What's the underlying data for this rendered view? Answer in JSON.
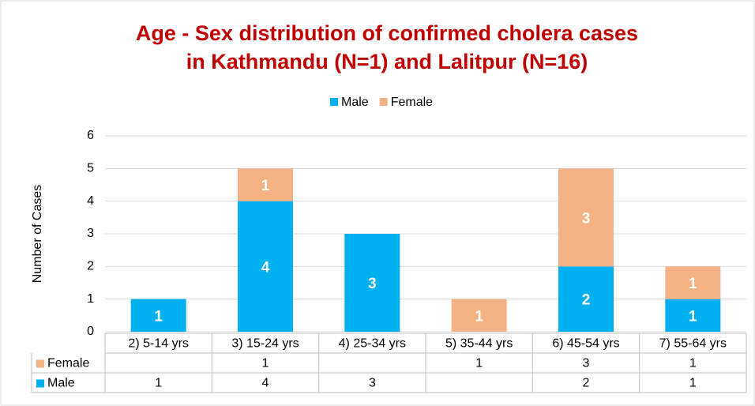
{
  "chart_data": {
    "type": "stacked_bar",
    "title": [
      "Age - Sex distribution of confirmed cholera cases",
      "in Kathmandu (N=1) and Lalitpur (N=16)"
    ],
    "ylabel": "Number of Cases",
    "categories": [
      "2) 5-14 yrs",
      "3) 15-24 yrs",
      "4) 25-34 yrs",
      "5) 35-44 yrs",
      "6) 45-54 yrs",
      "7) 55-64 yrs"
    ],
    "series": [
      {
        "name": "Male",
        "color": "#00b0f0",
        "values": [
          1,
          4,
          3,
          null,
          2,
          1
        ]
      },
      {
        "name": "Female",
        "color": "#f4b183",
        "values": [
          null,
          1,
          null,
          1,
          3,
          1
        ]
      }
    ],
    "ylim": [
      0,
      6
    ],
    "yticks": [
      0,
      1,
      2,
      3,
      4,
      5,
      6
    ],
    "grid": true,
    "legend": "top",
    "data_table": true
  }
}
